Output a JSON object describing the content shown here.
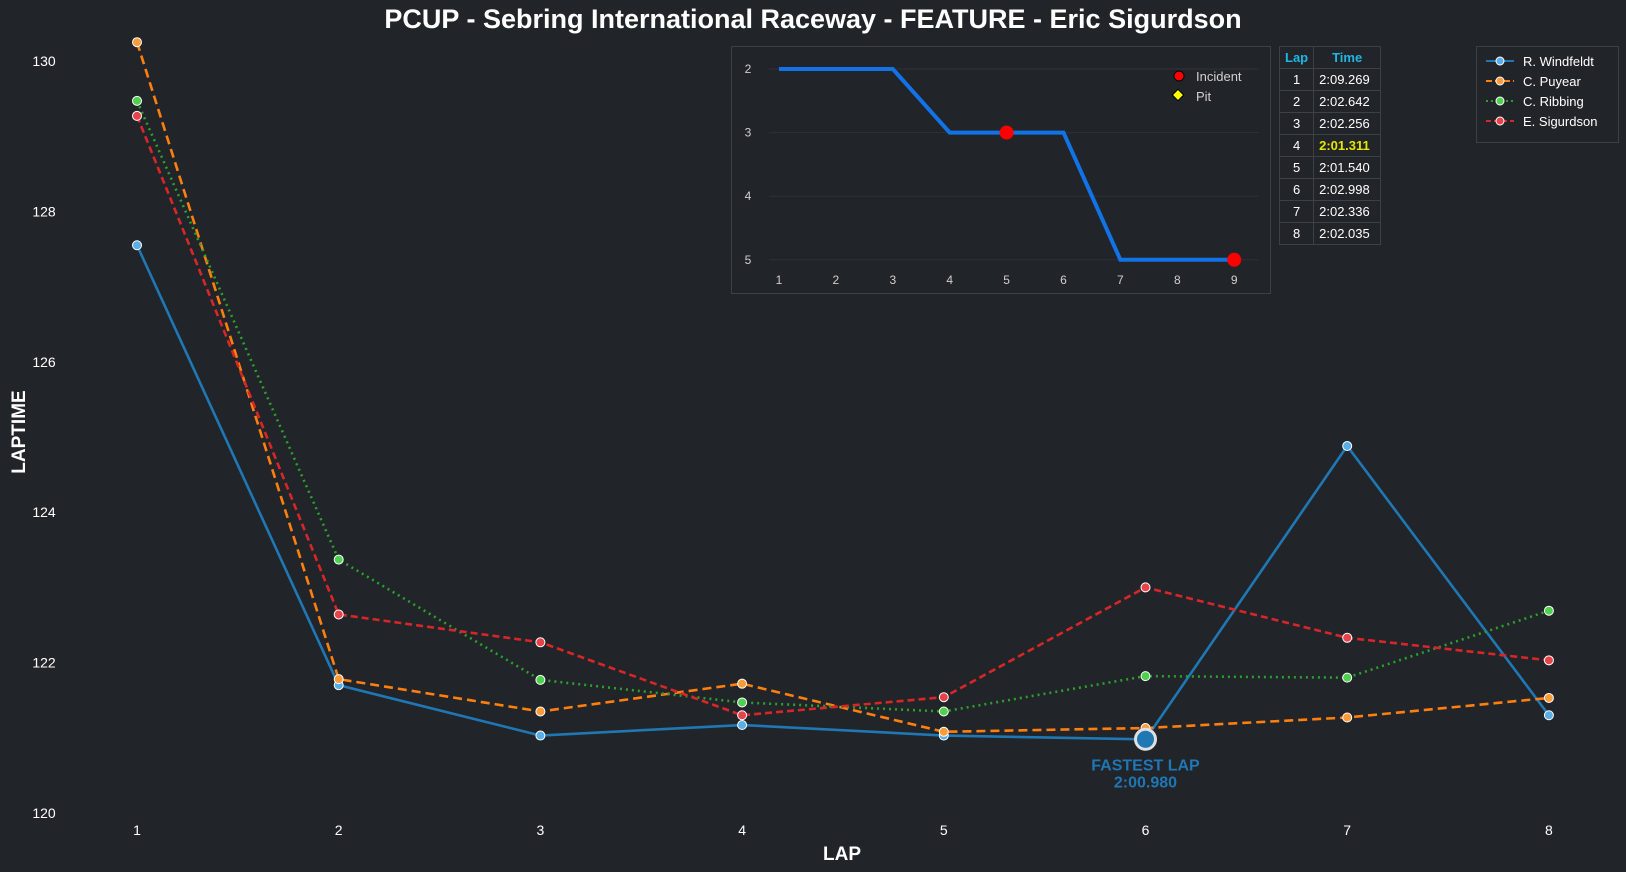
{
  "title": "PCUP - Sebring International Raceway - FEATURE - Eric Sigurdson",
  "chart_data": [
    {
      "type": "line",
      "xlabel": "LAP",
      "ylabel": "LAPTIME",
      "x": [
        1,
        2,
        3,
        4,
        5,
        6,
        7,
        8
      ],
      "ylim": [
        120,
        130.2
      ],
      "yticks": [
        120,
        122,
        124,
        126,
        128,
        130
      ],
      "series": [
        {
          "name": "R. Windfeldt",
          "color": "#1f77b4",
          "marker": "#5aaee8",
          "dash": "",
          "values": [
            127.55,
            121.7,
            121.03,
            121.17,
            121.03,
            120.98,
            124.88,
            121.3
          ]
        },
        {
          "name": "C. Puyear",
          "color": "#ff7f0e",
          "marker": "#ff9b3a",
          "dash": "9,5",
          "values": [
            130.25,
            121.78,
            121.35,
            121.72,
            121.08,
            121.13,
            121.27,
            121.53
          ]
        },
        {
          "name": "C. Ribbing",
          "color": "#2ca02c",
          "marker": "#4fd14f",
          "dash": "2,4",
          "values": [
            129.47,
            123.37,
            121.77,
            121.47,
            121.35,
            121.82,
            121.8,
            122.69
          ]
        },
        {
          "name": "E. Sigurdson",
          "color": "#d62728",
          "marker": "#e8434b",
          "dash": "7,4",
          "values": [
            129.27,
            122.64,
            122.27,
            121.3,
            121.54,
            123.0,
            122.33,
            122.03
          ]
        }
      ],
      "legend_position": "top-right",
      "annotation": {
        "label": "FASTEST LAP",
        "value": "2:00.980",
        "lap": 6,
        "laptime": 120.98
      }
    },
    {
      "type": "line",
      "x": [
        1,
        2,
        3,
        4,
        5,
        6,
        7,
        8,
        9
      ],
      "values": [
        2,
        2,
        2,
        3,
        3,
        3,
        5,
        5,
        5
      ],
      "yticks": [
        2,
        3,
        4,
        5
      ],
      "ylim_inverted": [
        2,
        5
      ],
      "color": "#1173e6",
      "incidents": [
        {
          "x": 5,
          "y": 3
        },
        {
          "x": 9,
          "y": 5
        }
      ],
      "legend": [
        {
          "label": "Incident",
          "color": "#ff0000"
        },
        {
          "label": "Pit",
          "color": "#ffff00"
        }
      ]
    }
  ],
  "lap_table": {
    "headers": [
      "Lap",
      "Time"
    ],
    "rows": [
      {
        "lap": "1",
        "time": "2:09.269"
      },
      {
        "lap": "2",
        "time": "2:02.642"
      },
      {
        "lap": "3",
        "time": "2:02.256"
      },
      {
        "lap": "4",
        "time": "2:01.311",
        "best": true
      },
      {
        "lap": "5",
        "time": "2:01.540"
      },
      {
        "lap": "6",
        "time": "2:02.998"
      },
      {
        "lap": "7",
        "time": "2:02.336"
      },
      {
        "lap": "8",
        "time": "2:02.035"
      }
    ]
  }
}
